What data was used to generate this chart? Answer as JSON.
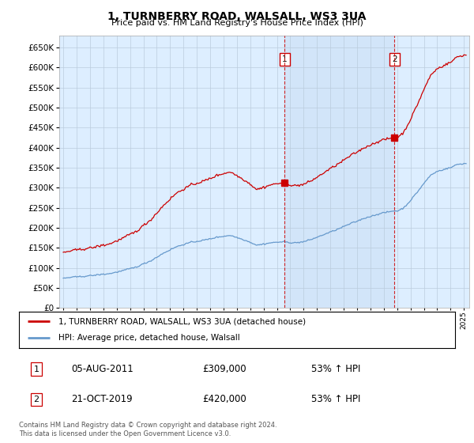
{
  "title": "1, TURNBERRY ROAD, WALSALL, WS3 3UA",
  "subtitle": "Price paid vs. HM Land Registry's House Price Index (HPI)",
  "ytick_values": [
    0,
    50000,
    100000,
    150000,
    200000,
    250000,
    300000,
    350000,
    400000,
    450000,
    500000,
    550000,
    600000,
    650000
  ],
  "ylim": [
    0,
    680000
  ],
  "xlim_start": 1994.7,
  "xlim_end": 2025.4,
  "sale1_t": 2011.583,
  "sale1_y": 309000,
  "sale1_label": "1",
  "sale2_t": 2019.792,
  "sale2_y": 420000,
  "sale2_label": "2",
  "legend_line1": "1, TURNBERRY ROAD, WALSALL, WS3 3UA (detached house)",
  "legend_line2": "HPI: Average price, detached house, Walsall",
  "table_row1_num": "1",
  "table_row1_date": "05-AUG-2011",
  "table_row1_price": "£309,000",
  "table_row1_hpi": "53% ↑ HPI",
  "table_row2_num": "2",
  "table_row2_date": "21-OCT-2019",
  "table_row2_price": "£420,000",
  "table_row2_hpi": "53% ↑ HPI",
  "footnote": "Contains HM Land Registry data © Crown copyright and database right 2024.\nThis data is licensed under the Open Government Licence v3.0.",
  "red_line_color": "#cc0000",
  "blue_line_color": "#6699cc",
  "shade_color": "#ddeeff",
  "bg_color": "#ddeeff",
  "plot_bg": "#ffffff",
  "grid_color": "#bbccdd",
  "title_fontsize": 10,
  "subtitle_fontsize": 8
}
